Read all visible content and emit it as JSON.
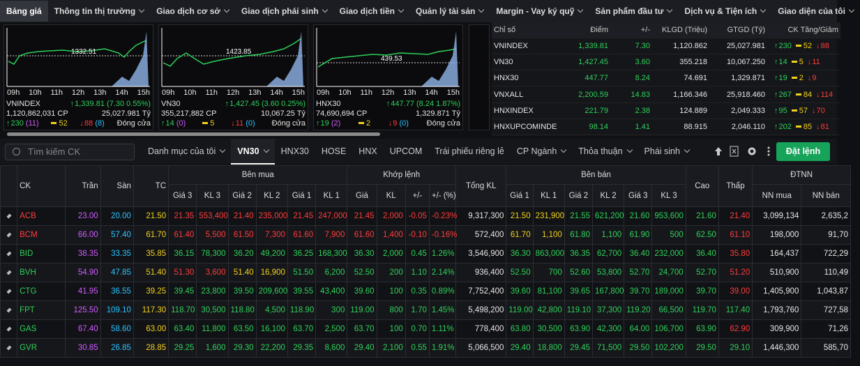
{
  "nav": {
    "items": [
      "Bảng giá",
      "Thông tin thị trường",
      "Giao dịch cơ sở",
      "Giao dịch phái sinh",
      "Giao dịch tiền",
      "Quản lý tài sản",
      "Margin - Vay ký quỹ",
      "Sản phẩm đầu tư",
      "Dịch vụ & Tiện ích",
      "Giao diện của tôi"
    ]
  },
  "mini_charts": [
    {
      "name": "VNINDEX",
      "ref_level": "1332.51",
      "time_labels": [
        "09h",
        "10h",
        "11h",
        "12h",
        "13h",
        "14h",
        "15h"
      ],
      "volume": "1,120,862,031 CP",
      "point": "1,339.81",
      "change": "(7.30 0.55%)",
      "value": "25,027.981 Tỷ",
      "advances": "230",
      "ceiling": "(11)",
      "unchanged": "52",
      "declines": "88",
      "floor": "(8)",
      "status": "Đóng cửa"
    },
    {
      "name": "VN30",
      "ref_level": "1423.85",
      "time_labels": [
        "09h",
        "10h",
        "11h",
        "12h",
        "13h",
        "14h",
        "15h"
      ],
      "volume": "355,217,882 CP",
      "point": "1,427.45",
      "change": "(3.60 0.25%)",
      "value": "10,067.25 Tỷ",
      "advances": "14",
      "ceiling": "(0)",
      "unchanged": "5",
      "declines": "11",
      "floor": "(0)",
      "status": "Đóng cửa"
    },
    {
      "name": "HNX30",
      "ref_level": "439.53",
      "time_labels": [
        "09h",
        "10h",
        "11h",
        "12h",
        "13h",
        "14h",
        "15h"
      ],
      "volume": "74,690,694 CP",
      "point": "447.77",
      "change": "(8.24 1.87%)",
      "value": "1,329.871 Tỷ",
      "advances": "19",
      "ceiling": "(2)",
      "unchanged": "2",
      "declines": "9",
      "floor": "(0)",
      "status": "Đóng cửa"
    }
  ],
  "index_table": {
    "headers": [
      "Chỉ số",
      "Điểm",
      "+/-",
      "KLGD (Triệu)",
      "GTGD (Tỷ)",
      "CK Tăng/Giảm"
    ],
    "rows": [
      [
        "VNINDEX",
        "1,339.81",
        "7.30",
        "1,120.862",
        "25,027.981",
        "230",
        "52",
        "88"
      ],
      [
        "VN30",
        "1,427.45",
        "3.60",
        "355.218",
        "10,067.250",
        "14",
        "5",
        "11"
      ],
      [
        "HNX30",
        "447.77",
        "8.24",
        "74.691",
        "1,329.871",
        "19",
        "2",
        "9"
      ],
      [
        "VNXALL",
        "2,200.59",
        "14.83",
        "1,166.346",
        "25,918.460",
        "267",
        "84",
        "114"
      ],
      [
        "HNXINDEX",
        "221.79",
        "2.38",
        "124.889",
        "2,049.333",
        "95",
        "57",
        "70"
      ],
      [
        "HNXUPCOMINDE",
        "98.14",
        "1.41",
        "88.915",
        "2,046.110",
        "202",
        "85",
        "81"
      ]
    ]
  },
  "toolbar": {
    "search_placeholder": "Tìm kiếm CK",
    "tabs": [
      "Danh mục của tôi",
      "VN30",
      "HNX30",
      "HOSE",
      "HNX",
      "UPCOM",
      "Trái phiếu riêng lẻ",
      "CP Ngành",
      "Thỏa thuận",
      "Phái sinh"
    ],
    "active_tab": 1,
    "order_button": "Đặt lệnh"
  },
  "board": {
    "top_headers": [
      "CK",
      "Trần",
      "Sàn",
      "TC",
      "Bên mua",
      "Khớp lệnh",
      "Tổng KL",
      "Bên bán",
      "Cao",
      "Thấp",
      "ĐTNN"
    ],
    "sub_headers": [
      "Giá 3",
      "KL 3",
      "Giá 2",
      "KL 2",
      "Giá 1",
      "KL 1",
      "Giá",
      "KL",
      "+/-",
      "+/- (%)",
      "Giá 1",
      "KL 1",
      "Giá 2",
      "KL 2",
      "Giá 3",
      "KL 3",
      "NN mua",
      "NN bán"
    ],
    "rows": [
      [
        "ACB",
        "23.00",
        "20.00",
        "21.50",
        "21.35",
        "553,400",
        "21.40",
        "235,000",
        "21.45",
        "247,000",
        "21.45",
        "2,000",
        "-0.05",
        "-0.23%",
        "9,317,300",
        "21.50",
        "231,900",
        "21.55",
        "621,200",
        "21.60",
        "953,600",
        "21.60",
        "21.40",
        "3,099,134",
        "2,635,2"
      ],
      [
        "BCM",
        "66.00",
        "57.40",
        "61.70",
        "61.40",
        "5,500",
        "61.50",
        "7,300",
        "61.60",
        "7,900",
        "61.60",
        "1,400",
        "-0.10",
        "-0.16%",
        "572,400",
        "61.70",
        "1,100",
        "61.80",
        "1,100",
        "61.90",
        "500",
        "62.50",
        "61.10",
        "198,000",
        "91,70"
      ],
      [
        "BID",
        "38.35",
        "33.35",
        "35.85",
        "36.15",
        "78,300",
        "36.20",
        "49,200",
        "36.25",
        "168,300",
        "36.30",
        "2,000",
        "0.45",
        "1.26%",
        "3,546,900",
        "36.30",
        "863,000",
        "36.35",
        "62,700",
        "36.40",
        "232,000",
        "36.40",
        "35.80",
        "164,437",
        "722,29"
      ],
      [
        "BVH",
        "54.90",
        "47.85",
        "51.40",
        "51.30",
        "3,600",
        "51.40",
        "16,900",
        "51.50",
        "6,200",
        "52.50",
        "200",
        "1.10",
        "2.14%",
        "936,400",
        "52.50",
        "700",
        "52.60",
        "53,800",
        "52.70",
        "24,700",
        "52.70",
        "51.20",
        "510,900",
        "110,49"
      ],
      [
        "CTG",
        "41.95",
        "36.55",
        "39.25",
        "39.45",
        "23,800",
        "39.50",
        "209,600",
        "39.55",
        "43,400",
        "39.60",
        "100",
        "0.35",
        "0.89%",
        "7,752,400",
        "39.60",
        "81,100",
        "39.65",
        "167,800",
        "39.70",
        "189,000",
        "39.70",
        "39.00",
        "1,405,900",
        "1,043,87"
      ],
      [
        "FPT",
        "125.50",
        "109.10",
        "117.30",
        "118.70",
        "30,500",
        "118.80",
        "4,500",
        "118.90",
        "300",
        "119.00",
        "800",
        "1.70",
        "1.45%",
        "5,498,200",
        "119.00",
        "42,800",
        "119.10",
        "37,300",
        "119.20",
        "66,500",
        "119.70",
        "117.40",
        "1,793,760",
        "727,58"
      ],
      [
        "GAS",
        "67.40",
        "58.60",
        "63.00",
        "63.40",
        "11,800",
        "63.50",
        "16,100",
        "63.70",
        "2,500",
        "63.70",
        "100",
        "0.70",
        "1.11%",
        "778,400",
        "63.80",
        "30,500",
        "63.90",
        "42,300",
        "64.00",
        "106,700",
        "63.90",
        "62.90",
        "309,900",
        "71,26"
      ],
      [
        "GVR",
        "30.85",
        "26.85",
        "28.85",
        "29.25",
        "1,600",
        "29.30",
        "22,200",
        "29.35",
        "8,600",
        "29.40",
        "2,100",
        "0.55",
        "1.91%",
        "5,066,500",
        "29.40",
        "18,800",
        "29.45",
        "71,500",
        "29.50",
        "102,200",
        "29.50",
        "29.10",
        "1,446,300",
        "585,70"
      ]
    ]
  }
}
